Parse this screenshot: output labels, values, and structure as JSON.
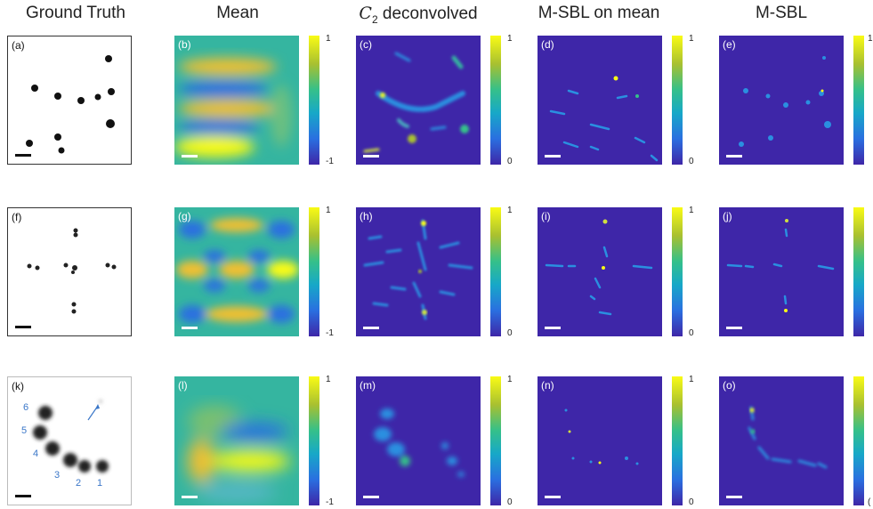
{
  "columns": [
    {
      "title": "Ground Truth"
    },
    {
      "title": "Mean"
    },
    {
      "title_var": "C",
      "title_sub": "2",
      "title_rest": " deconvolved"
    },
    {
      "title": "M-SBL on mean"
    },
    {
      "title": "M-SBL"
    }
  ],
  "panel_labels": [
    "(a)",
    "(b)",
    "(c)",
    "(d)",
    "(e)",
    "(f)",
    "(g)",
    "(h)",
    "(i)",
    "(j)",
    "(k)",
    "(l)",
    "(m)",
    "(n)",
    "(o)"
  ],
  "colorbar_ticks": {
    "mean": {
      "top": "1",
      "bottom": "-1"
    },
    "deconv": {
      "top": "1",
      "bottom": "0"
    },
    "msbl_mean": {
      "top": "1",
      "bottom": "0"
    },
    "msbl": {
      "top": "1",
      "bottom": "("
    }
  },
  "numbered_emitters": [
    "6",
    "5",
    "4",
    "3",
    "2",
    "1"
  ],
  "colors": {
    "background_dark": "#3e26a8",
    "bright": "#f9fb15",
    "mid": "#35b5a0",
    "annotation": "#3b77c8"
  }
}
